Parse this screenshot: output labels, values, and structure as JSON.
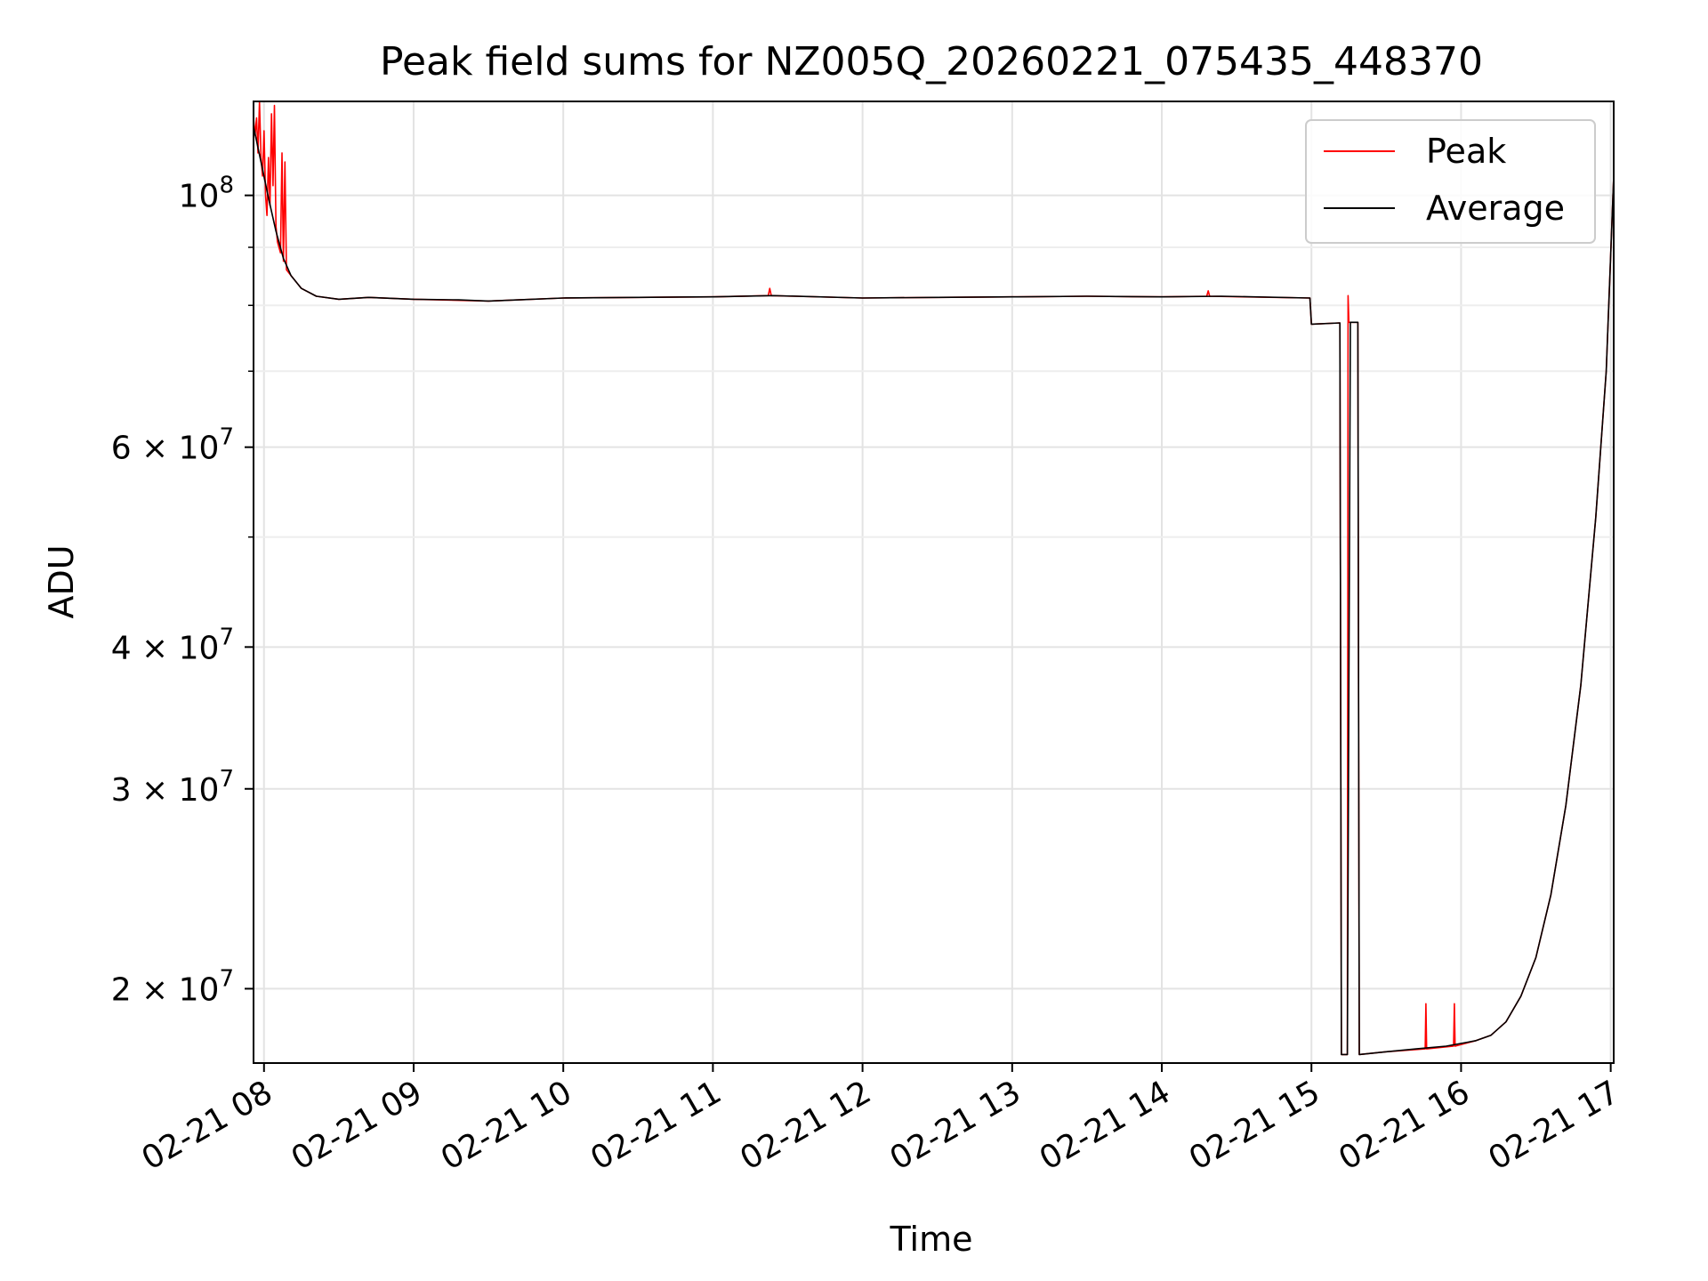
{
  "chart_data": {
    "type": "line",
    "title": "Peak field sums for NZ005Q_20260221_075435_448370",
    "xlabel": "Time",
    "ylabel": "ADU",
    "yscale": "log",
    "xlim": [
      7.93,
      17.02
    ],
    "ylim": [
      17200000,
      121000000
    ],
    "grid": true,
    "legend_position": "upper right",
    "x_unit": "hour of day 2026-02-21",
    "x_ticks": [
      {
        "value": 8,
        "label": "02-21 08"
      },
      {
        "value": 9,
        "label": "02-21 09"
      },
      {
        "value": 10,
        "label": "02-21 10"
      },
      {
        "value": 11,
        "label": "02-21 11"
      },
      {
        "value": 12,
        "label": "02-21 12"
      },
      {
        "value": 13,
        "label": "02-21 13"
      },
      {
        "value": 14,
        "label": "02-21 14"
      },
      {
        "value": 15,
        "label": "02-21 15"
      },
      {
        "value": 16,
        "label": "02-21 16"
      },
      {
        "value": 17,
        "label": "02-21 17"
      }
    ],
    "y_ticks": [
      {
        "value": 100000000,
        "base": "10",
        "exp": "8"
      },
      {
        "value": 60000000,
        "base": "6 × 10",
        "exp": "7"
      },
      {
        "value": 40000000,
        "base": "4 × 10",
        "exp": "7"
      },
      {
        "value": 30000000,
        "base": "3 × 10",
        "exp": "7"
      },
      {
        "value": 20000000,
        "base": "2 × 10",
        "exp": "7"
      }
    ],
    "y_minor_ticks": [
      50000000,
      70000000,
      80000000,
      90000000
    ],
    "series": [
      {
        "name": "Average",
        "color": "#000000",
        "points": [
          [
            7.93,
            115000000
          ],
          [
            7.98,
            107000000
          ],
          [
            8.03,
            99500000
          ],
          [
            8.08,
            93000000
          ],
          [
            8.13,
            88000000
          ],
          [
            8.18,
            85000000
          ],
          [
            8.25,
            82800000
          ],
          [
            8.35,
            81500000
          ],
          [
            8.5,
            81000000
          ],
          [
            8.7,
            81300000
          ],
          [
            9.0,
            81000000
          ],
          [
            9.3,
            80900000
          ],
          [
            9.5,
            80700000
          ],
          [
            9.7,
            80900000
          ],
          [
            10.0,
            81200000
          ],
          [
            10.5,
            81300000
          ],
          [
            11.0,
            81400000
          ],
          [
            11.4,
            81600000
          ],
          [
            12.0,
            81200000
          ],
          [
            12.5,
            81300000
          ],
          [
            13.0,
            81400000
          ],
          [
            13.5,
            81500000
          ],
          [
            14.0,
            81400000
          ],
          [
            14.4,
            81500000
          ],
          [
            14.99,
            81200000
          ],
          [
            15.0,
            77000000
          ],
          [
            15.19,
            77200000
          ],
          [
            15.2,
            17500000
          ],
          [
            15.24,
            17500000
          ],
          [
            15.26,
            77300000
          ],
          [
            15.31,
            77300000
          ],
          [
            15.32,
            17500000
          ],
          [
            15.5,
            17600000
          ],
          [
            15.7,
            17700000
          ],
          [
            15.9,
            17800000
          ],
          [
            16.1,
            18000000
          ],
          [
            16.2,
            18200000
          ],
          [
            16.3,
            18700000
          ],
          [
            16.4,
            19700000
          ],
          [
            16.5,
            21300000
          ],
          [
            16.6,
            24200000
          ],
          [
            16.7,
            29000000
          ],
          [
            16.8,
            37000000
          ],
          [
            16.9,
            52000000
          ],
          [
            16.97,
            70000000
          ],
          [
            17.02,
            104000000
          ]
        ]
      },
      {
        "name": "Peak",
        "color": "#ff0000",
        "points": [
          [
            7.93,
            117000000
          ],
          [
            7.94,
            113000000
          ],
          [
            7.95,
            117000000
          ],
          [
            7.96,
            109000000
          ],
          [
            7.97,
            121000000
          ],
          [
            7.98,
            108000000
          ],
          [
            7.99,
            104000000
          ],
          [
            8.0,
            114000000
          ],
          [
            8.01,
            100000000
          ],
          [
            8.02,
            96000000
          ],
          [
            8.03,
            108000000
          ],
          [
            8.04,
            98000000
          ],
          [
            8.05,
            118000000
          ],
          [
            8.06,
            102000000
          ],
          [
            8.07,
            120000000
          ],
          [
            8.08,
            94000000
          ],
          [
            8.09,
            91000000
          ],
          [
            8.1,
            90000000
          ],
          [
            8.11,
            89000000
          ],
          [
            8.12,
            109000000
          ],
          [
            8.13,
            87500000
          ],
          [
            8.14,
            107000000
          ],
          [
            8.15,
            86000000
          ],
          [
            8.18,
            85000000
          ],
          [
            8.25,
            82800000
          ],
          [
            8.35,
            81500000
          ],
          [
            8.5,
            81000000
          ],
          [
            8.7,
            81300000
          ],
          [
            9.0,
            81000000
          ],
          [
            9.5,
            80700000
          ],
          [
            10.0,
            81200000
          ],
          [
            10.5,
            81300000
          ],
          [
            11.0,
            81400000
          ],
          [
            11.37,
            81600000
          ],
          [
            11.38,
            82800000
          ],
          [
            11.39,
            81600000
          ],
          [
            12.0,
            81200000
          ],
          [
            12.5,
            81300000
          ],
          [
            13.0,
            81400000
          ],
          [
            13.5,
            81500000
          ],
          [
            14.0,
            81400000
          ],
          [
            14.3,
            81500000
          ],
          [
            14.31,
            82400000
          ],
          [
            14.32,
            81500000
          ],
          [
            14.99,
            81200000
          ],
          [
            15.0,
            77000000
          ],
          [
            15.19,
            77200000
          ],
          [
            15.2,
            17500000
          ],
          [
            15.24,
            17500000
          ],
          [
            15.245,
            81600000
          ],
          [
            15.25,
            77300000
          ],
          [
            15.31,
            77300000
          ],
          [
            15.32,
            17500000
          ],
          [
            15.5,
            17600000
          ],
          [
            15.76,
            17700000
          ],
          [
            15.765,
            19400000
          ],
          [
            15.77,
            17700000
          ],
          [
            15.95,
            17800000
          ],
          [
            15.955,
            19400000
          ],
          [
            15.96,
            17800000
          ],
          [
            16.1,
            18000000
          ],
          [
            16.2,
            18200000
          ],
          [
            16.3,
            18700000
          ],
          [
            16.4,
            19700000
          ],
          [
            16.5,
            21300000
          ],
          [
            16.6,
            24200000
          ],
          [
            16.7,
            29000000
          ],
          [
            16.8,
            37000000
          ],
          [
            16.9,
            52000000
          ],
          [
            16.97,
            70000000
          ],
          [
            17.02,
            104000000
          ]
        ]
      }
    ],
    "legend": [
      {
        "label": "Peak",
        "color": "#ff0000"
      },
      {
        "label": "Average",
        "color": "#000000"
      }
    ]
  }
}
